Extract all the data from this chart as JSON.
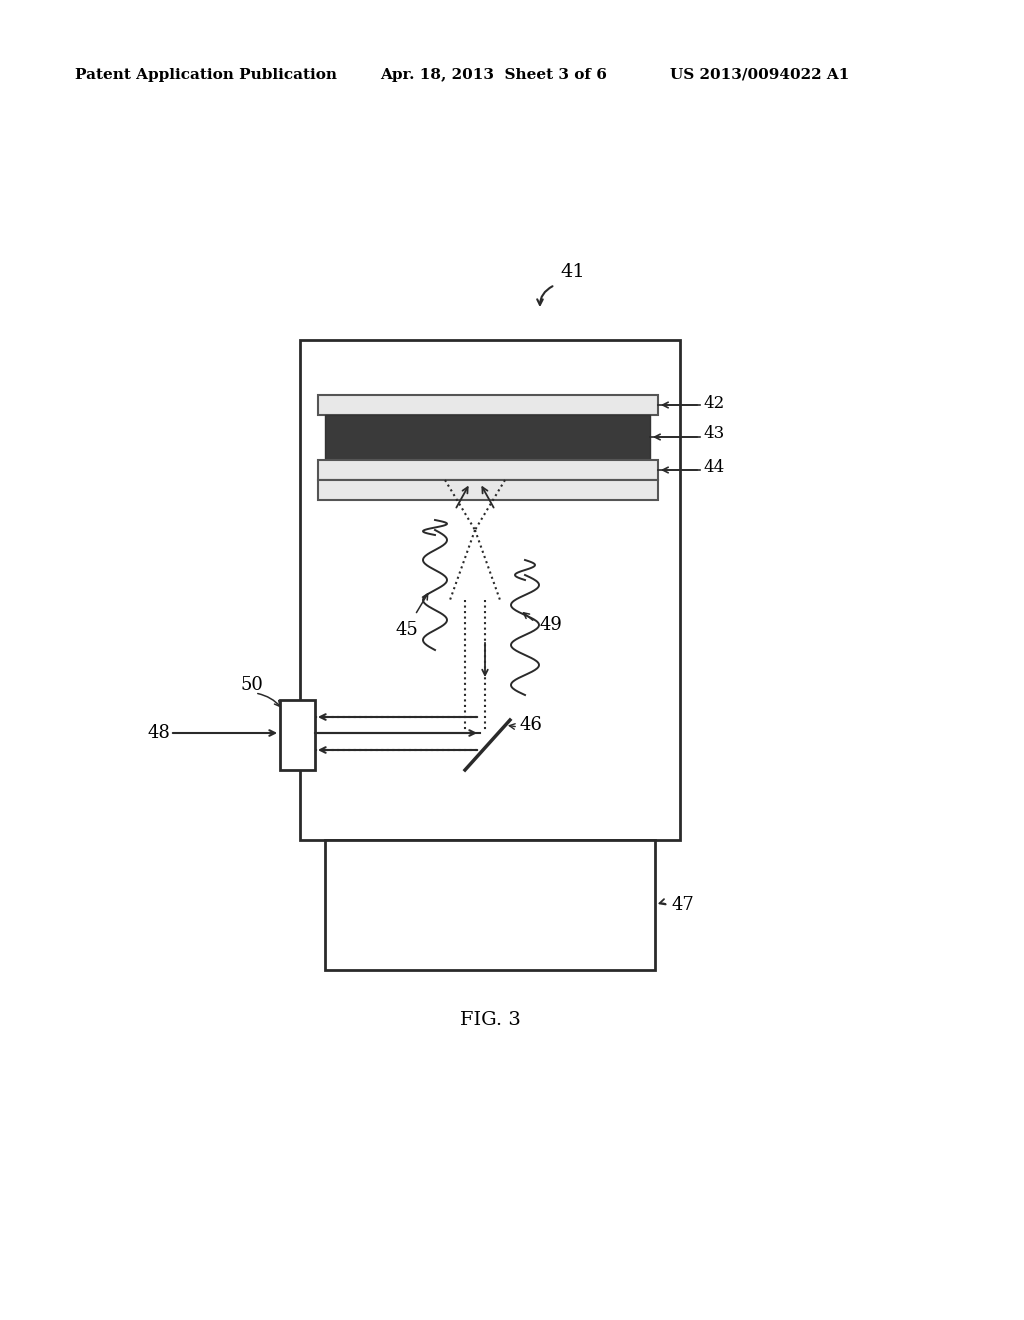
{
  "bg_color": "#ffffff",
  "header_left": "Patent Application Publication",
  "header_mid": "Apr. 18, 2013  Sheet 3 of 6",
  "header_right": "US 2013/0094022 A1",
  "fig_label": "FIG. 3",
  "ref_41": "41",
  "ref_42": "42",
  "ref_43": "43",
  "ref_44": "44",
  "ref_45": "45",
  "ref_46": "46",
  "ref_47": "47",
  "ref_48": "48",
  "ref_49": "49",
  "ref_50": "50",
  "lc": "#2a2a2a"
}
